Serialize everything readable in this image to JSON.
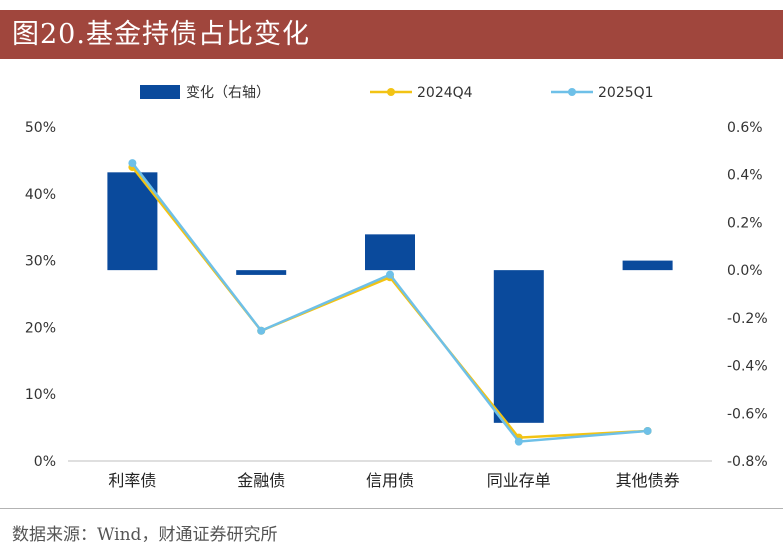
{
  "header": {
    "title": "图20.基金持债占比变化"
  },
  "footer": {
    "source": "数据来源：Wind，财通证券研究所"
  },
  "colors": {
    "title_bg": "#a0463d",
    "bar": "#0a4a9c",
    "line_2024q4": "#f2c314",
    "line_2025q1": "#6ec0e8"
  },
  "chart_data": {
    "type": "bar+line",
    "categories": [
      "利率债",
      "金融债",
      "信用债",
      "同业存单",
      "其他债券"
    ],
    "series": [
      {
        "name": "变化（右轴）",
        "kind": "bar",
        "axis": "right",
        "values": [
          0.41,
          -0.02,
          0.15,
          -0.64,
          0.04
        ]
      },
      {
        "name": "2024Q4",
        "kind": "line",
        "axis": "left",
        "values": [
          44.0,
          19.5,
          27.5,
          3.5,
          4.5
        ]
      },
      {
        "name": "2025Q1",
        "kind": "line",
        "axis": "left",
        "values": [
          44.6,
          19.5,
          27.9,
          2.9,
          4.5
        ]
      }
    ],
    "left_axis": {
      "ylim": [
        0,
        50
      ],
      "ticks": [
        "0%",
        "10%",
        "20%",
        "30%",
        "40%",
        "50%"
      ]
    },
    "right_axis": {
      "ylim": [
        -0.8,
        0.6
      ],
      "ticks": [
        "-0.8%",
        "-0.6%",
        "-0.4%",
        "-0.2%",
        "0.0%",
        "0.2%",
        "0.4%",
        "0.6%"
      ]
    },
    "legend_position": "top"
  }
}
